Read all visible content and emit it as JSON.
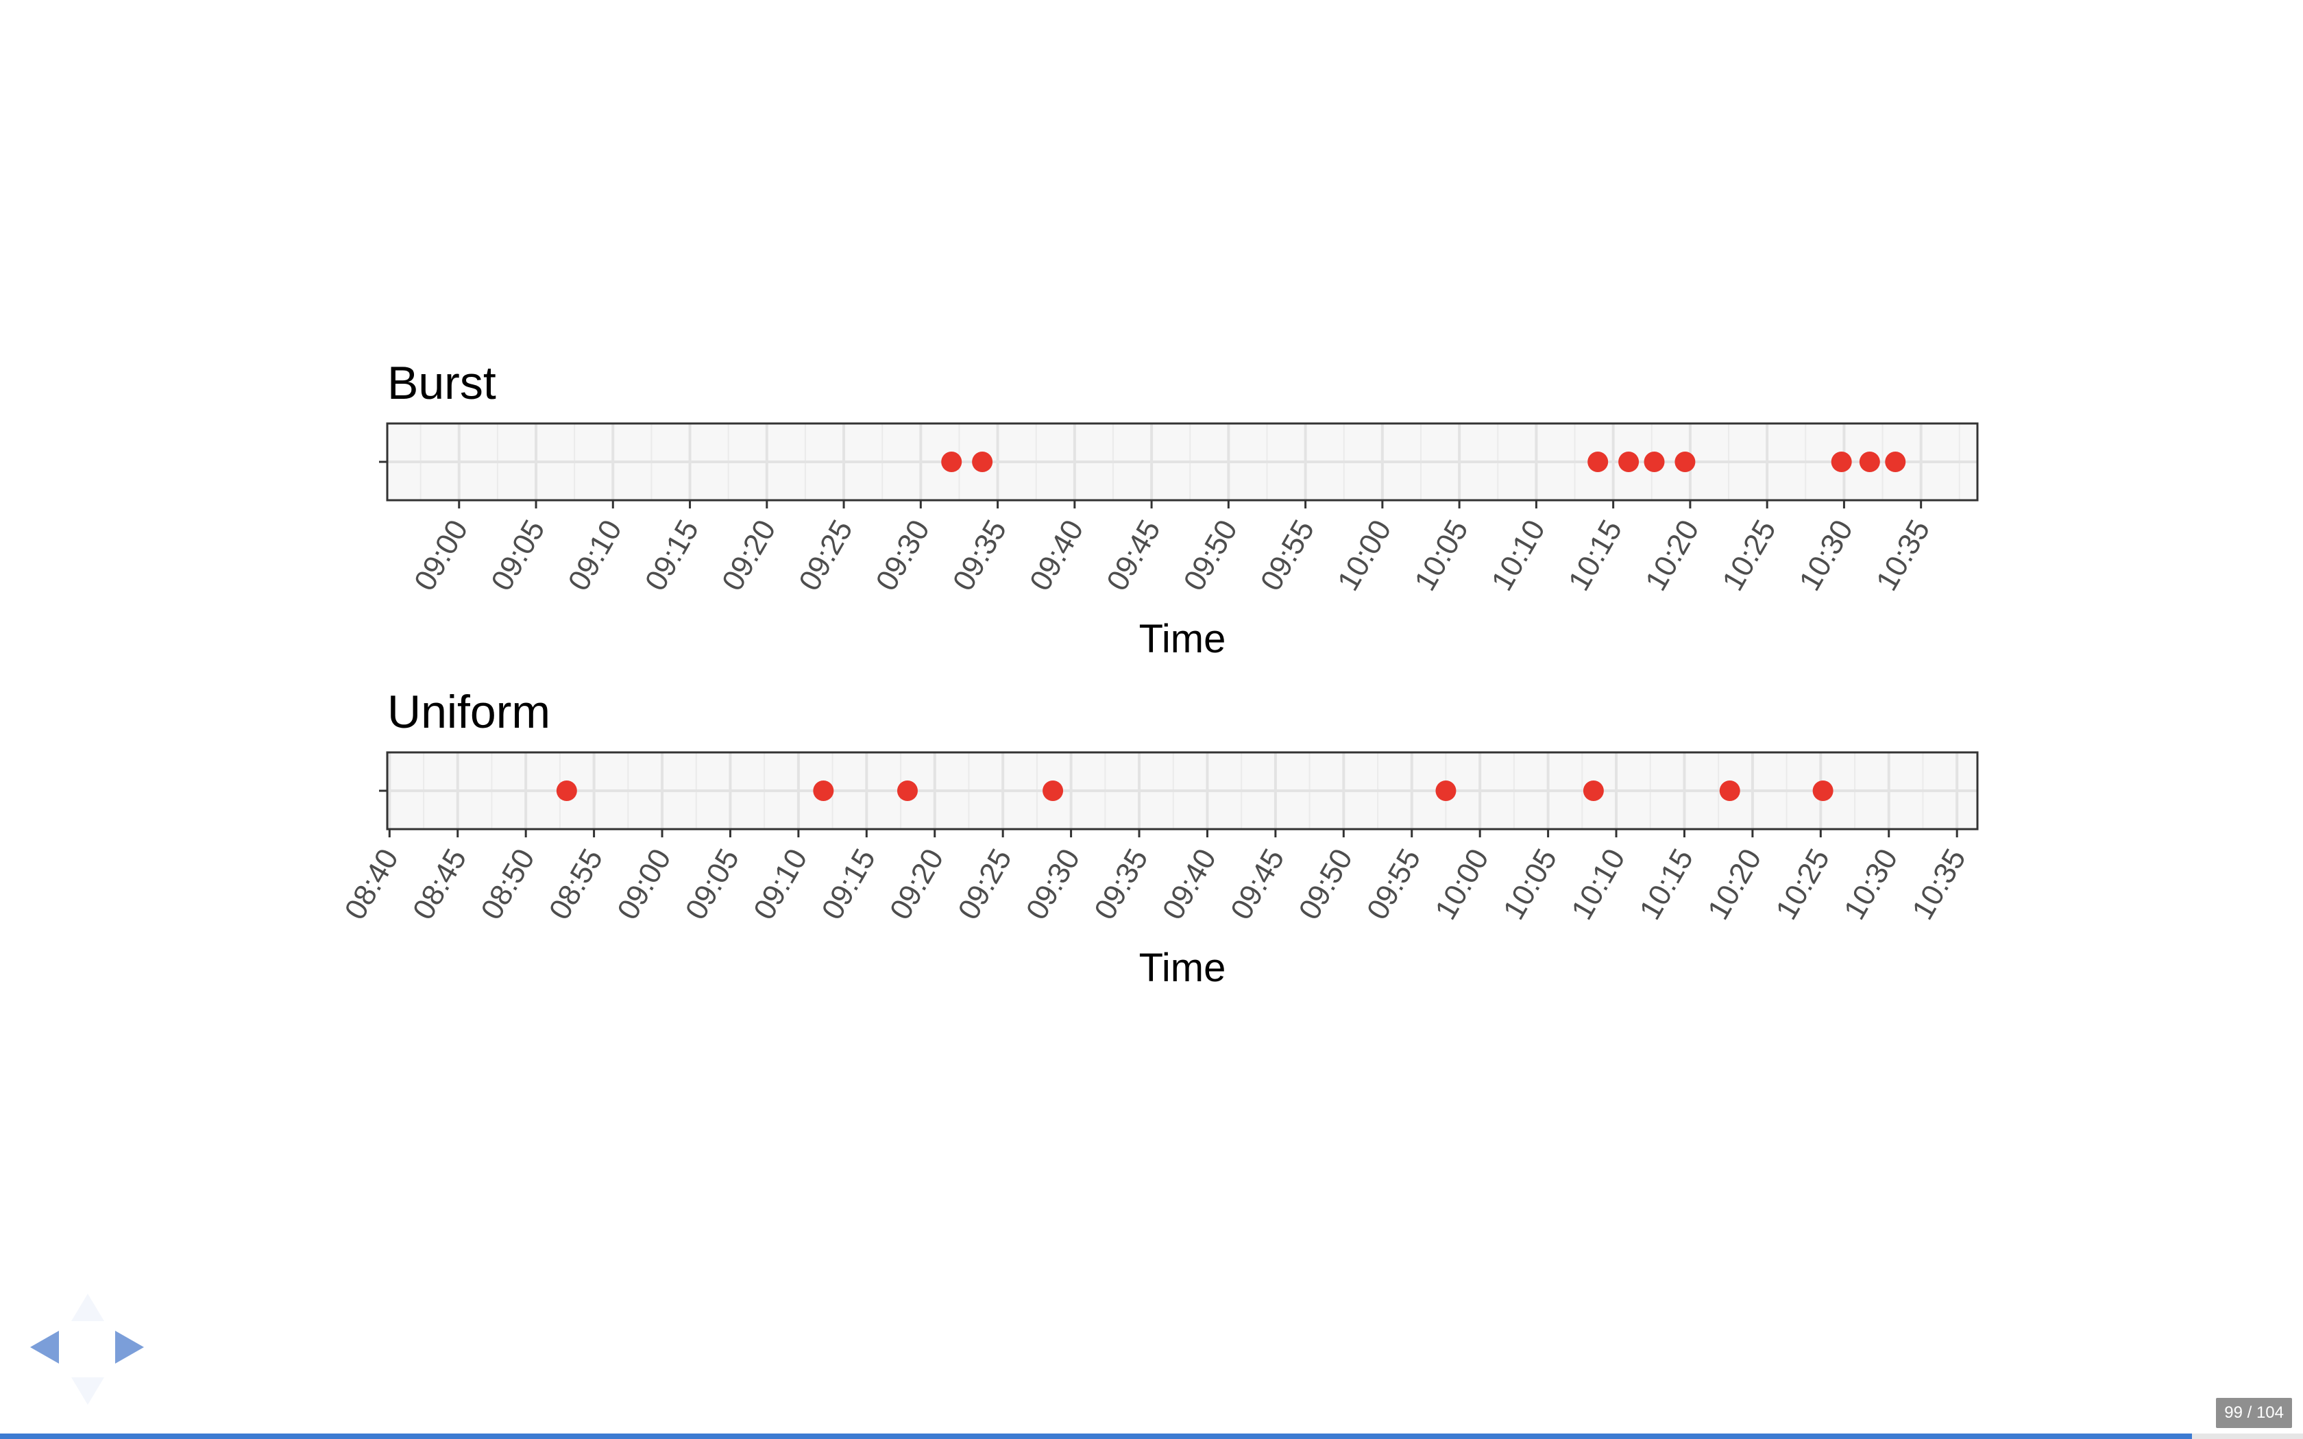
{
  "chart_data": [
    {
      "type": "scatter",
      "title": "Burst",
      "xlabel": "Time",
      "ylabel": "",
      "x_axis": "time",
      "xlim": [
        "08:55:20",
        "10:38:40"
      ],
      "ticks": [
        "09:00",
        "09:05",
        "09:10",
        "09:15",
        "09:20",
        "09:25",
        "09:30",
        "09:35",
        "09:40",
        "09:45",
        "09:50",
        "09:55",
        "10:00",
        "10:05",
        "10:10",
        "10:15",
        "10:20",
        "10:25",
        "10:30",
        "10:35"
      ],
      "x": [
        "09:32:00",
        "09:34:00",
        "10:14:00",
        "10:16:00",
        "10:17:40",
        "10:19:40",
        "10:29:50",
        "10:31:40",
        "10:33:20"
      ],
      "point_color": "#e8352b",
      "grid": true
    },
    {
      "type": "scatter",
      "title": "Uniform",
      "xlabel": "Time",
      "ylabel": "",
      "x_axis": "time",
      "xlim": [
        "08:39:50",
        "10:36:30"
      ],
      "ticks": [
        "08:40",
        "08:45",
        "08:50",
        "08:55",
        "09:00",
        "09:05",
        "09:10",
        "09:15",
        "09:20",
        "09:25",
        "09:30",
        "09:35",
        "09:40",
        "09:45",
        "09:50",
        "09:55",
        "10:00",
        "10:05",
        "10:10",
        "10:15",
        "10:20",
        "10:25",
        "10:30",
        "10:35"
      ],
      "x": [
        "08:53:00",
        "09:11:50",
        "09:18:00",
        "09:28:40",
        "09:57:30",
        "10:08:20",
        "10:18:20",
        "10:25:10"
      ],
      "point_color": "#e8352b",
      "grid": true
    }
  ],
  "navigation": {
    "left_icon": "arrow-left-icon",
    "right_icon": "arrow-right-icon",
    "up_icon": "arrow-up-icon",
    "down_icon": "arrow-down-icon"
  },
  "slide_counter": "99 / 104",
  "progress": {
    "current": 99,
    "total": 104
  }
}
